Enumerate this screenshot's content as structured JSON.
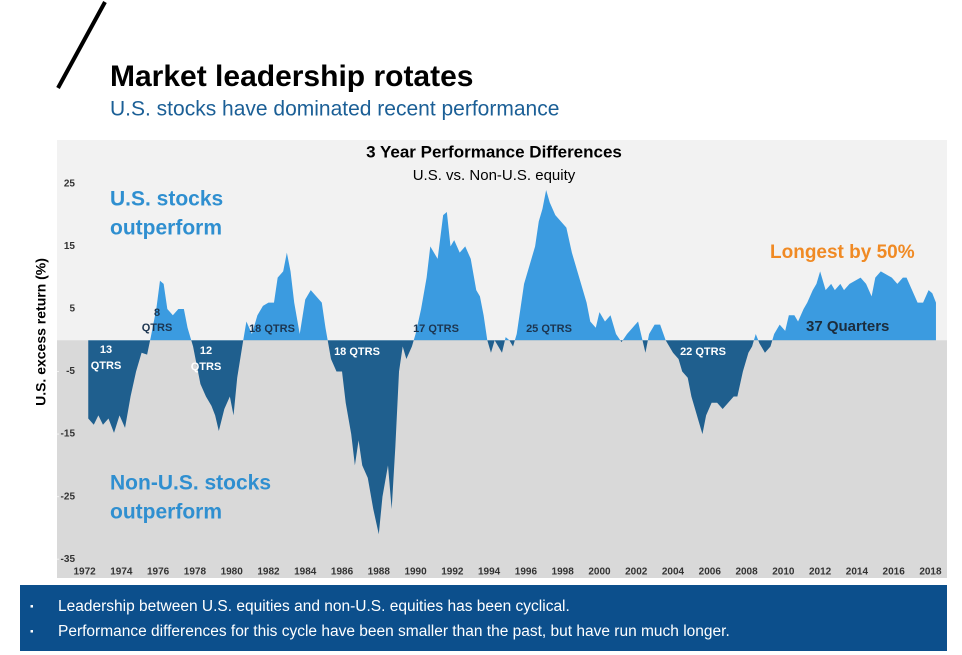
{
  "header": {
    "title": "Market leadership rotates",
    "subtitle": "U.S. stocks have dominated recent performance"
  },
  "chart_data": {
    "type": "area",
    "title": "3 Year Performance Differences",
    "subtitle": "U.S. vs. Non-U.S. equity",
    "y_label": "U.S. excess return (%)",
    "color_positive": "#3b9be0",
    "color_negative": "#1f5f8e",
    "xlim": [
      1970.5,
      2018.9
    ],
    "ylim": [
      -38,
      32
    ],
    "xticks": [
      1972,
      1974,
      1976,
      1978,
      1980,
      1982,
      1984,
      1986,
      1988,
      1990,
      1992,
      1994,
      1996,
      1998,
      2000,
      2002,
      2004,
      2006,
      2008,
      2010,
      2012,
      2014,
      2016,
      2018
    ],
    "yticks": [
      25,
      15,
      5,
      -5,
      -15,
      -25,
      -35
    ],
    "x": [
      1972.2,
      1972.5,
      1972.75,
      1973,
      1973.3,
      1973.6,
      1973.9,
      1974.2,
      1974.5,
      1974.8,
      1975.1,
      1975.4,
      1975.6,
      1975.9,
      1976.1,
      1976.3,
      1976.5,
      1976.8,
      1977.1,
      1977.4,
      1977.6,
      1977.9,
      1978.1,
      1978.3,
      1978.6,
      1978.9,
      1979.1,
      1979.3,
      1979.6,
      1979.9,
      1980.1,
      1980.3,
      1980.6,
      1980.8,
      1981.1,
      1981.4,
      1981.7,
      1982.0,
      1982.3,
      1982.5,
      1982.8,
      1983.0,
      1983.2,
      1983.4,
      1983.7,
      1984.0,
      1984.3,
      1984.6,
      1984.9,
      1985.1,
      1985.4,
      1985.7,
      1986.0,
      1986.2,
      1986.5,
      1986.7,
      1986.9,
      1987.1,
      1987.4,
      1987.7,
      1988.0,
      1988.2,
      1988.5,
      1988.7,
      1988.9,
      1989.1,
      1989.3,
      1989.5,
      1989.8,
      1990.0,
      1990.3,
      1990.6,
      1990.8,
      1991.0,
      1991.2,
      1991.5,
      1991.7,
      1991.9,
      1992.1,
      1992.4,
      1992.7,
      1993.0,
      1993.3,
      1993.5,
      1993.7,
      1993.9,
      1994.1,
      1994.3,
      1994.5,
      1994.7,
      1994.9,
      1995.1,
      1995.3,
      1995.5,
      1995.7,
      1995.9,
      1996.2,
      1996.5,
      1996.7,
      1996.9,
      1997.1,
      1997.3,
      1997.6,
      1997.9,
      1998.2,
      1998.5,
      1998.8,
      1999.1,
      1999.3,
      1999.5,
      1999.8,
      2000.0,
      2000.3,
      2000.6,
      2000.9,
      2001.2,
      2001.5,
      2001.8,
      2002.1,
      2002.3,
      2002.5,
      2002.7,
      2003.0,
      2003.3,
      2003.6,
      2004.0,
      2004.3,
      2004.5,
      2004.8,
      2005.0,
      2005.2,
      2005.4,
      2005.6,
      2005.8,
      2006.1,
      2006.4,
      2006.7,
      2007.0,
      2007.3,
      2007.5,
      2007.8,
      2008.1,
      2008.3,
      2008.5,
      2008.7,
      2009.0,
      2009.3,
      2009.5,
      2009.8,
      2010.1,
      2010.3,
      2010.6,
      2010.8,
      2011.1,
      2011.3,
      2011.6,
      2011.8,
      2012.0,
      2012.3,
      2012.6,
      2012.8,
      2013.1,
      2013.3,
      2013.6,
      2013.9,
      2014.2,
      2014.5,
      2014.8,
      2015.0,
      2015.3,
      2015.6,
      2015.9,
      2016.2,
      2016.5,
      2016.7,
      2017.0,
      2017.3,
      2017.6,
      2017.9,
      2018.1,
      2018.3
    ],
    "values": [
      -12.5,
      -13.5,
      -12,
      -13.5,
      -12.5,
      -14.8,
      -12,
      -14,
      -9,
      -5,
      -2,
      -2.3,
      0.5,
      5,
      9.5,
      9,
      5,
      4,
      5,
      5,
      2,
      -1,
      -4,
      -7,
      -9,
      -10.5,
      -12,
      -14.5,
      -11,
      -9,
      -12,
      -6,
      -0.5,
      3,
      1,
      4,
      5.5,
      6,
      6,
      10,
      11,
      14,
      11,
      6,
      1,
      6.5,
      8,
      7,
      6,
      2,
      -3,
      -5,
      -5,
      -10,
      -15,
      -20,
      -16,
      -20,
      -22,
      -27,
      -31,
      -25,
      -20,
      -27,
      -17,
      -5,
      -1,
      -3,
      -1,
      1,
      5,
      10,
      15,
      14,
      13,
      20,
      20.5,
      15,
      16,
      14,
      15,
      13,
      8,
      7,
      4,
      0,
      -2,
      0,
      -1,
      -2,
      0.5,
      0,
      -1,
      1,
      5,
      9,
      12,
      15,
      19,
      21,
      24,
      22,
      20,
      19,
      18,
      14,
      11,
      8,
      6,
      3,
      2,
      4.5,
      3,
      4,
      1,
      -0.3,
      1,
      2,
      3,
      0.5,
      -2,
      1,
      2.5,
      2.5,
      0,
      -2,
      -3,
      -5,
      -6,
      -9,
      -11,
      -13,
      -15,
      -12,
      -10,
      -10,
      -11,
      -10,
      -9,
      -9,
      -5,
      -2,
      -1,
      1,
      -0.5,
      -2,
      -1,
      1,
      2.5,
      1.5,
      4,
      4,
      3,
      5,
      6,
      8,
      9,
      11,
      8,
      9,
      8,
      9,
      8,
      9,
      9.5,
      10,
      9,
      7,
      10,
      11,
      10.5,
      10,
      9,
      10,
      10,
      8,
      6,
      6,
      8,
      7.5,
      6
    ],
    "annotations": [
      "U.S. stocks",
      "outperform",
      "Non-U.S. stocks",
      "outperform",
      "Longest by 50%",
      "37 Quarters",
      "13",
      "QTRS",
      "8",
      "QTRS",
      "12",
      "QTRS",
      "18 QTRS",
      "18 QTRS",
      "17 QTRS",
      "25 QTRS",
      "22 QTRS"
    ]
  },
  "footer": {
    "bullets": [
      "Leadership between U.S. equities and non-U.S. equities has been cyclical.",
      "Performance differences for this cycle have been smaller than the past, but have run much longer."
    ]
  }
}
